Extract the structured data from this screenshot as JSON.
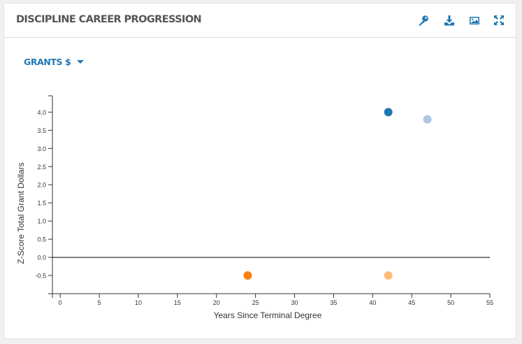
{
  "panel": {
    "title": "DISCIPLINE CAREER PROGRESSION",
    "tools": [
      {
        "name": "key-icon"
      },
      {
        "name": "download-icon"
      },
      {
        "name": "image-icon"
      },
      {
        "name": "expand-icon"
      }
    ],
    "accent_color": "#1f77b4"
  },
  "metric_selector": {
    "selected": "GRANTS $"
  },
  "chart_data": {
    "type": "scatter",
    "title": "",
    "xlabel": "Years Since Terminal Degree",
    "ylabel": "Z-Score Total Grant Dollars",
    "xlim": [
      -1,
      55
    ],
    "ylim": [
      -1,
      4.45
    ],
    "xticks": [
      0,
      5,
      10,
      15,
      20,
      25,
      30,
      35,
      40,
      45,
      50,
      55
    ],
    "yticks": [
      -0.5,
      0.0,
      0.5,
      1.0,
      1.5,
      2.0,
      2.5,
      3.0,
      3.5,
      4.0
    ],
    "ytick_labels": [
      "-0.5",
      "0.0",
      "0.5",
      "1.0",
      "1.5",
      "2.0",
      "2.5",
      "3.0",
      "3.5",
      "4.0"
    ],
    "zero_line": true,
    "grid": false,
    "points": [
      {
        "x": 42,
        "y": 4.0,
        "color": "#1f77b4"
      },
      {
        "x": 47,
        "y": 3.8,
        "color": "#aec7e8"
      },
      {
        "x": 24,
        "y": -0.5,
        "color": "#ff7f0e"
      },
      {
        "x": 42,
        "y": -0.5,
        "color": "#ffbb78"
      }
    ]
  }
}
